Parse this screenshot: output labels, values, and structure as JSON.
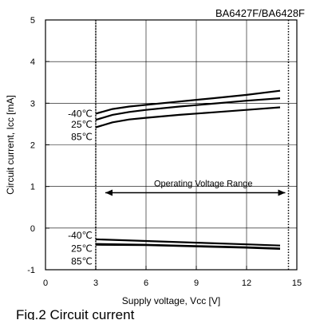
{
  "chart_data": {
    "type": "line",
    "title": "BA6427F/BA6428F",
    "xlabel": "Supply voltage, Vcc [V]",
    "ylabel": "Circuit current, Icc [mA]",
    "xlim": [
      0,
      15
    ],
    "ylim": [
      -1,
      5
    ],
    "xticks": [
      "0",
      "3",
      "6",
      "9",
      "12",
      "15"
    ],
    "yticks": [
      "-1",
      "0",
      "1",
      "2",
      "3",
      "4",
      "5"
    ],
    "grid": true,
    "vlines": [
      3,
      14.5
    ],
    "annotation": {
      "text": "Operating Voltage Range",
      "x_start": 3,
      "x_end": 14.5,
      "y": 0.85
    },
    "upper_group_labels": [
      "-40℃",
      "25℃",
      "85℃"
    ],
    "lower_group_labels": [
      "-40℃",
      "25℃",
      "85℃"
    ],
    "series": [
      {
        "group": "upper",
        "temp": "-40℃",
        "x": [
          3,
          4,
          5,
          6,
          8,
          10,
          12,
          14
        ],
        "values": [
          2.75,
          2.86,
          2.92,
          2.96,
          3.04,
          3.12,
          3.2,
          3.3
        ]
      },
      {
        "group": "upper",
        "temp": "25℃",
        "x": [
          3,
          4,
          5,
          6,
          8,
          10,
          12,
          14
        ],
        "values": [
          2.6,
          2.72,
          2.79,
          2.84,
          2.92,
          2.99,
          3.06,
          3.12
        ]
      },
      {
        "group": "upper",
        "temp": "85℃",
        "x": [
          3,
          4,
          5,
          6,
          8,
          10,
          12,
          14
        ],
        "values": [
          2.42,
          2.54,
          2.61,
          2.65,
          2.72,
          2.78,
          2.84,
          2.9
        ]
      },
      {
        "group": "lower",
        "temp": "-40℃",
        "x": [
          3,
          6,
          9,
          12,
          14
        ],
        "values": [
          -0.27,
          -0.31,
          -0.35,
          -0.39,
          -0.42
        ]
      },
      {
        "group": "lower",
        "temp": "25℃",
        "x": [
          3,
          6,
          9,
          12,
          14
        ],
        "values": [
          -0.4,
          -0.41,
          -0.44,
          -0.47,
          -0.5
        ]
      },
      {
        "group": "lower",
        "temp": "85℃",
        "x": [
          3,
          6,
          9,
          12,
          14
        ],
        "values": [
          -0.38,
          -0.4,
          -0.43,
          -0.46,
          -0.49
        ]
      }
    ],
    "caption": "Fig.2 Circuit current"
  }
}
